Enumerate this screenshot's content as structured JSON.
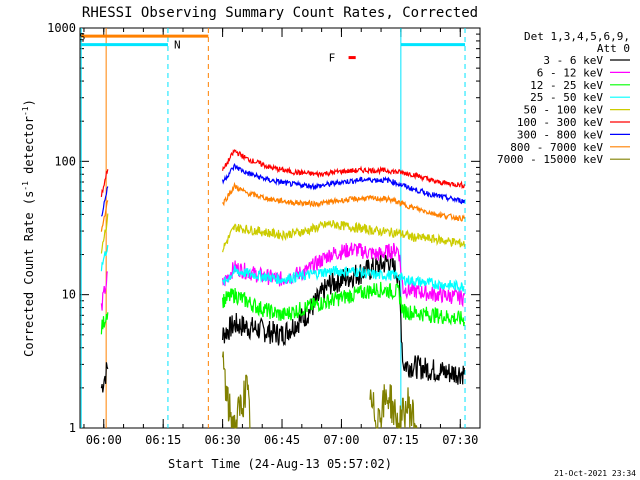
{
  "chart_data": {
    "type": "line",
    "title": "RHESSI Observing Summary Count Rates, Corrected",
    "xlabel": "Start Time (24-Aug-13 05:57:02)",
    "ylabel_main": "Corrected Count Rate (s",
    "ylabel_sup1": "-1",
    "ylabel_mid": " detector",
    "ylabel_sup2": "-1",
    "ylabel_end": ")",
    "yscale": "log",
    "ylim": [
      1,
      1000
    ],
    "xlim_minutes": [
      5.9,
      7.583
    ],
    "xticks": [
      {
        "label": "06:00",
        "value": 6.0
      },
      {
        "label": "06:15",
        "value": 6.25
      },
      {
        "label": "06:30",
        "value": 6.5
      },
      {
        "label": "06:45",
        "value": 6.75
      },
      {
        "label": "07:00",
        "value": 7.0
      },
      {
        "label": "07:15",
        "value": 7.25
      },
      {
        "label": "07:30",
        "value": 7.5
      }
    ],
    "yticks": [
      {
        "label": "1",
        "value": 1
      },
      {
        "label": "10",
        "value": 10
      },
      {
        "label": "100",
        "value": 100
      },
      {
        "label": "1000",
        "value": 1000
      }
    ],
    "legend": {
      "header1": "Det 1,3,4,5,6,9,",
      "header2": "Att 0",
      "placement": "right"
    },
    "series": [
      {
        "name": "3 - 6 keV",
        "color": "#000000",
        "seg1": [
          [
            5.99,
            2
          ],
          [
            6.02,
            3
          ]
        ],
        "seg2": [
          [
            6.5,
            5
          ],
          [
            6.55,
            6
          ],
          [
            6.65,
            5.5
          ],
          [
            6.75,
            5
          ],
          [
            6.85,
            7
          ],
          [
            6.95,
            12
          ],
          [
            7.05,
            14
          ],
          [
            7.15,
            16
          ],
          [
            7.2,
            18
          ],
          [
            7.24,
            14
          ],
          [
            7.26,
            3
          ],
          [
            7.35,
            2.8
          ],
          [
            7.45,
            2.6
          ],
          [
            7.52,
            2.6
          ]
        ]
      },
      {
        "name": "6 - 12 keV",
        "color": "#ff00ff",
        "seg1": [
          [
            5.99,
            8
          ],
          [
            6.02,
            15
          ]
        ],
        "seg2": [
          [
            6.5,
            12
          ],
          [
            6.55,
            16
          ],
          [
            6.65,
            14
          ],
          [
            6.75,
            13
          ],
          [
            6.85,
            15
          ],
          [
            6.95,
            20
          ],
          [
            7.05,
            22
          ],
          [
            7.15,
            20
          ],
          [
            7.24,
            22
          ],
          [
            7.26,
            11
          ],
          [
            7.4,
            10
          ],
          [
            7.52,
            9.5
          ]
        ]
      },
      {
        "name": "12 - 25 keV",
        "color": "#00ff00",
        "seg1": [
          [
            5.99,
            5.5
          ],
          [
            6.02,
            8
          ]
        ],
        "seg2": [
          [
            6.5,
            9
          ],
          [
            6.55,
            10
          ],
          [
            6.65,
            8
          ],
          [
            6.75,
            7
          ],
          [
            6.85,
            8
          ],
          [
            6.95,
            9
          ],
          [
            7.05,
            10
          ],
          [
            7.15,
            11
          ],
          [
            7.24,
            10.5
          ],
          [
            7.26,
            7.5
          ],
          [
            7.4,
            7
          ],
          [
            7.52,
            6.5
          ]
        ]
      },
      {
        "name": "25 - 50 keV",
        "color": "#00ffff",
        "seg1": [
          [
            5.99,
            16
          ],
          [
            6.02,
            25
          ]
        ],
        "seg2": [
          [
            6.5,
            12
          ],
          [
            6.55,
            15
          ],
          [
            6.65,
            14
          ],
          [
            6.75,
            13
          ],
          [
            6.85,
            14
          ],
          [
            6.95,
            15
          ],
          [
            7.05,
            15
          ],
          [
            7.15,
            14
          ],
          [
            7.24,
            14
          ],
          [
            7.26,
            13
          ],
          [
            7.4,
            12
          ],
          [
            7.52,
            11.5
          ]
        ]
      },
      {
        "name": "50 - 100 keV",
        "color": "#cccc00",
        "seg1": [
          [
            5.99,
            22
          ],
          [
            6.02,
            40
          ]
        ],
        "seg2": [
          [
            6.5,
            22
          ],
          [
            6.55,
            32
          ],
          [
            6.65,
            30
          ],
          [
            6.75,
            28
          ],
          [
            6.85,
            30
          ],
          [
            6.95,
            34
          ],
          [
            7.05,
            32
          ],
          [
            7.15,
            30
          ],
          [
            7.24,
            29
          ],
          [
            7.3,
            27
          ],
          [
            7.4,
            26
          ],
          [
            7.52,
            24
          ]
        ]
      },
      {
        "name": "100 - 300 keV",
        "color": "#ff0000",
        "seg1": [
          [
            5.99,
            55
          ],
          [
            6.02,
            95
          ]
        ],
        "seg2": [
          [
            6.5,
            85
          ],
          [
            6.55,
            120
          ],
          [
            6.6,
            105
          ],
          [
            6.7,
            90
          ],
          [
            6.8,
            83
          ],
          [
            6.9,
            80
          ],
          [
            7.0,
            84
          ],
          [
            7.1,
            86
          ],
          [
            7.2,
            85
          ],
          [
            7.3,
            80
          ],
          [
            7.4,
            70
          ],
          [
            7.52,
            66
          ]
        ]
      },
      {
        "name": "300 - 800 keV",
        "color": "#0000ff",
        "seg1": [
          [
            5.99,
            38
          ],
          [
            6.02,
            70
          ]
        ],
        "seg2": [
          [
            6.5,
            70
          ],
          [
            6.55,
            92
          ],
          [
            6.6,
            82
          ],
          [
            6.7,
            72
          ],
          [
            6.8,
            67
          ],
          [
            6.9,
            65
          ],
          [
            7.0,
            70
          ],
          [
            7.1,
            73
          ],
          [
            7.2,
            72
          ],
          [
            7.3,
            62
          ],
          [
            7.4,
            55
          ],
          [
            7.52,
            50
          ]
        ]
      },
      {
        "name": "800 - 7000 keV",
        "color": "#ff8000",
        "seg1": [
          [
            5.99,
            30
          ],
          [
            6.02,
            55
          ]
        ],
        "seg2": [
          [
            6.5,
            48
          ],
          [
            6.55,
            65
          ],
          [
            6.6,
            58
          ],
          [
            6.7,
            52
          ],
          [
            6.8,
            49
          ],
          [
            6.9,
            48
          ],
          [
            7.0,
            51
          ],
          [
            7.1,
            53
          ],
          [
            7.2,
            52
          ],
          [
            7.3,
            45
          ],
          [
            7.4,
            40
          ],
          [
            7.52,
            37
          ]
        ]
      },
      {
        "name": "7000 - 15000 keV",
        "color": "#808000",
        "seg1": [],
        "seg2": [
          [
            6.5,
            3.5
          ],
          [
            6.52,
            1.5
          ],
          [
            6.55,
            1
          ],
          [
            6.6,
            2
          ],
          [
            6.62,
            1
          ]
        ],
        "seg3": [
          [
            7.12,
            1.5
          ],
          [
            7.15,
            1.2
          ],
          [
            7.2,
            1.8
          ],
          [
            7.24,
            1
          ],
          [
            7.28,
            1.5
          ],
          [
            7.32,
            1
          ]
        ]
      }
    ],
    "intervals": [
      {
        "label": "N",
        "color": "#00e5ff",
        "start": 5.905,
        "end": 6.27,
        "level": 750
      },
      {
        "label": "",
        "color": "#00e5ff",
        "start": 7.25,
        "end": 7.52,
        "level": 750
      },
      {
        "label": "",
        "color": "#ff8000",
        "start": 5.905,
        "end": 6.44,
        "level": 870
      }
    ],
    "flare_marker": {
      "label": "F",
      "color": "#ff0000",
      "start": 7.03,
      "end": 7.06,
      "level": 600
    },
    "night_marker": {
      "label": "N"
    },
    "saa_marker": {
      "label": "S"
    },
    "vlines": [
      {
        "value": 5.905,
        "color": "#00e5ff",
        "dash": false
      },
      {
        "value": 6.01,
        "color": "#ff8000",
        "dash": false
      },
      {
        "value": 6.27,
        "color": "#00e5ff",
        "dash": true
      },
      {
        "value": 6.44,
        "color": "#ff8000",
        "dash": true
      },
      {
        "value": 7.25,
        "color": "#00e5ff",
        "dash": false
      },
      {
        "value": 7.52,
        "color": "#00e5ff",
        "dash": true
      }
    ]
  },
  "timestamp": "21-Oct-2021 23:34"
}
